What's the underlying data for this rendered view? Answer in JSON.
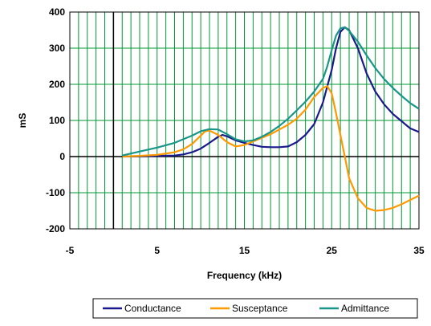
{
  "chart_data": {
    "type": "line",
    "title": "",
    "xlabel": "Frequency (kHz)",
    "ylabel": "mS",
    "xlim": [
      -5,
      35
    ],
    "ylim": [
      -200,
      400
    ],
    "x_ticks": [
      -5,
      5,
      15,
      25,
      35
    ],
    "y_ticks": [
      -200,
      -100,
      0,
      100,
      200,
      300,
      400
    ],
    "grid": "vertical gridlines every 1 kHz, horizontal gridlines every 100 mS",
    "legend_position": "bottom",
    "series": [
      {
        "name": "Conductance",
        "color": "#1a1a8c",
        "points": [
          [
            1,
            0
          ],
          [
            3,
            1
          ],
          [
            5,
            2
          ],
          [
            7,
            3
          ],
          [
            8,
            6
          ],
          [
            9,
            12
          ],
          [
            10,
            22
          ],
          [
            11,
            38
          ],
          [
            12,
            55
          ],
          [
            12.5,
            60
          ],
          [
            13,
            56
          ],
          [
            14,
            45
          ],
          [
            15,
            38
          ],
          [
            16,
            32
          ],
          [
            17,
            27
          ],
          [
            18,
            26
          ],
          [
            19,
            26
          ],
          [
            20,
            28
          ],
          [
            21,
            40
          ],
          [
            22,
            60
          ],
          [
            23,
            90
          ],
          [
            24,
            150
          ],
          [
            25,
            240
          ],
          [
            25.5,
            300
          ],
          [
            26,
            345
          ],
          [
            26.5,
            358
          ],
          [
            27,
            350
          ],
          [
            28,
            300
          ],
          [
            29,
            230
          ],
          [
            30,
            180
          ],
          [
            31,
            145
          ],
          [
            32,
            118
          ],
          [
            33,
            98
          ],
          [
            34,
            78
          ],
          [
            35,
            68
          ]
        ]
      },
      {
        "name": "Susceptance",
        "color": "#ff9900",
        "points": [
          [
            1,
            0
          ],
          [
            3,
            2
          ],
          [
            5,
            5
          ],
          [
            7,
            12
          ],
          [
            8,
            20
          ],
          [
            9,
            35
          ],
          [
            10,
            58
          ],
          [
            10.5,
            70
          ],
          [
            11,
            72
          ],
          [
            12,
            60
          ],
          [
            13,
            40
          ],
          [
            14,
            28
          ],
          [
            15,
            32
          ],
          [
            16,
            42
          ],
          [
            17,
            52
          ],
          [
            18,
            62
          ],
          [
            19,
            75
          ],
          [
            20,
            88
          ],
          [
            21,
            105
          ],
          [
            22,
            130
          ],
          [
            23,
            165
          ],
          [
            24,
            190
          ],
          [
            24.5,
            195
          ],
          [
            25,
            175
          ],
          [
            25.5,
            120
          ],
          [
            26,
            60
          ],
          [
            26.5,
            0
          ],
          [
            27,
            -60
          ],
          [
            28,
            -115
          ],
          [
            29,
            -142
          ],
          [
            30,
            -150
          ],
          [
            31,
            -148
          ],
          [
            32,
            -142
          ],
          [
            33,
            -132
          ],
          [
            34,
            -120
          ],
          [
            35,
            -108
          ]
        ]
      },
      {
        "name": "Admittance",
        "color": "#1a9688",
        "points": [
          [
            1,
            3
          ],
          [
            3,
            14
          ],
          [
            5,
            25
          ],
          [
            7,
            38
          ],
          [
            8,
            48
          ],
          [
            9,
            58
          ],
          [
            10,
            70
          ],
          [
            11,
            76
          ],
          [
            12,
            75
          ],
          [
            13,
            62
          ],
          [
            14,
            48
          ],
          [
            15,
            42
          ],
          [
            16,
            45
          ],
          [
            17,
            55
          ],
          [
            18,
            68
          ],
          [
            19,
            85
          ],
          [
            20,
            105
          ],
          [
            21,
            128
          ],
          [
            22,
            152
          ],
          [
            23,
            180
          ],
          [
            24,
            215
          ],
          [
            24.5,
            250
          ],
          [
            25,
            295
          ],
          [
            25.5,
            335
          ],
          [
            26,
            355
          ],
          [
            26.5,
            358
          ],
          [
            27,
            348
          ],
          [
            28,
            318
          ],
          [
            29,
            280
          ],
          [
            30,
            245
          ],
          [
            31,
            215
          ],
          [
            32,
            190
          ],
          [
            33,
            168
          ],
          [
            34,
            148
          ],
          [
            35,
            132
          ]
        ]
      }
    ]
  }
}
